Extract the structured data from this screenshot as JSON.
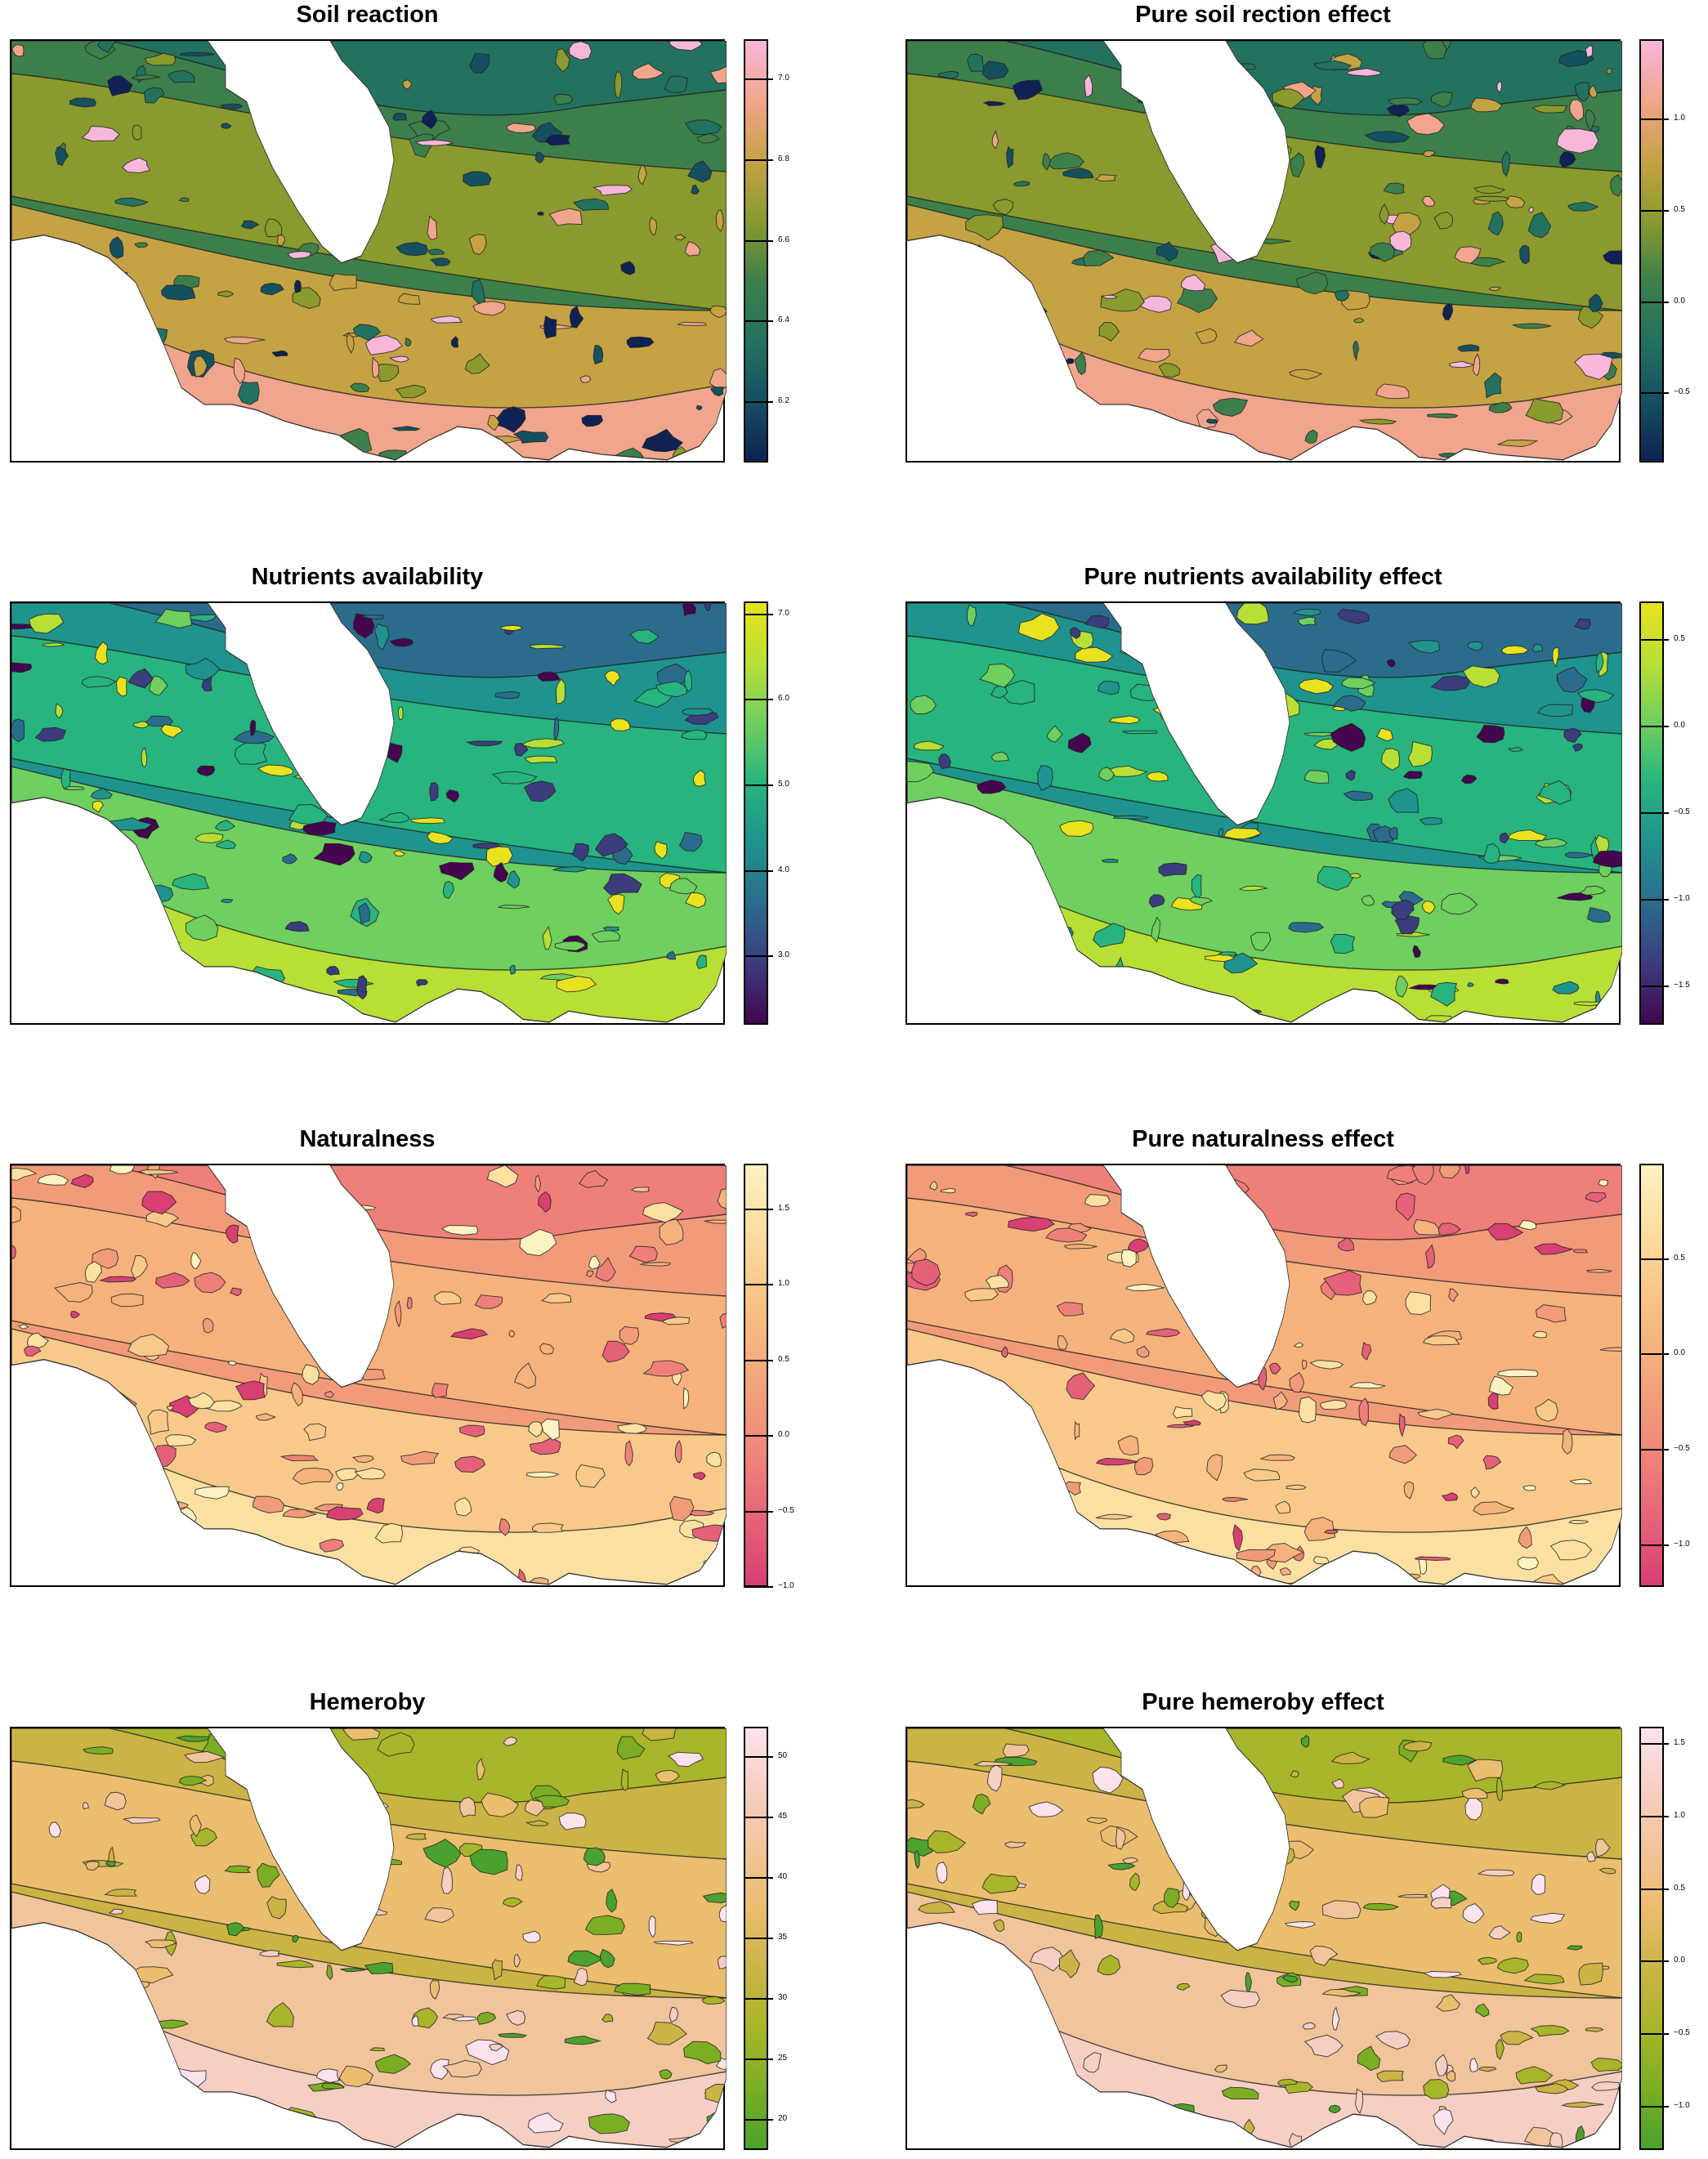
{
  "figure": {
    "panels": [
      {
        "title": "Soil reaction",
        "palette": "batlow",
        "ticks": [
          "7.0",
          "6.8",
          "6.6",
          "6.4",
          "6.2"
        ],
        "tick_values": [
          7.0,
          6.8,
          6.6,
          6.4,
          6.2
        ],
        "range": [
          6.05,
          7.1
        ],
        "colors": [
          "#0f2253",
          "#155061",
          "#237260",
          "#3d7f4b",
          "#8a9a2e",
          "#c5a244",
          "#f0a58c",
          "#f7b7da"
        ]
      },
      {
        "title": "Pure soil rection effect",
        "palette": "batlow",
        "ticks": [
          "1.0",
          "0.5",
          "0.0",
          "−0.5"
        ],
        "tick_values": [
          1.0,
          0.5,
          0.0,
          -0.5
        ],
        "range": [
          -0.88,
          1.44
        ],
        "colors": [
          "#0f2253",
          "#155061",
          "#237260",
          "#3d7f4b",
          "#8a9a2e",
          "#c5a244",
          "#f0a58c",
          "#f7b7da"
        ]
      },
      {
        "title": "Nutrients availability",
        "palette": "viridis",
        "ticks": [
          "7.0",
          "6.0",
          "5.0",
          "4.0",
          "3.0"
        ],
        "tick_values": [
          7.0,
          6.0,
          5.0,
          4.0,
          3.0
        ],
        "range": [
          2.2,
          7.15
        ],
        "colors": [
          "#43064f",
          "#3b3d7d",
          "#2b6c8d",
          "#1f938d",
          "#27b47f",
          "#6fcf5f",
          "#b8df35",
          "#e9e21f"
        ]
      },
      {
        "title": "Pure nutrients availability effect",
        "palette": "viridis",
        "ticks": [
          "0.5",
          "0.0",
          "−0.5",
          "−1.0",
          "−1.5"
        ],
        "tick_values": [
          0.5,
          0.0,
          -0.5,
          -1.0,
          -1.5
        ],
        "range": [
          -1.72,
          0.72
        ],
        "colors": [
          "#43064f",
          "#3b3d7d",
          "#2b6c8d",
          "#1f938d",
          "#27b47f",
          "#6fcf5f",
          "#b8df35",
          "#e9e21f"
        ]
      },
      {
        "title": "Naturalness",
        "palette": "heat",
        "ticks": [
          "1.5",
          "1.0",
          "0.5",
          "0.0",
          "−0.5",
          "−1.0"
        ],
        "tick_values": [
          1.5,
          1.0,
          0.5,
          0.0,
          -0.5,
          -1.0
        ],
        "range": [
          -1.0,
          1.8
        ],
        "colors": [
          "#d83f72",
          "#e56079",
          "#ee8079",
          "#f29b7a",
          "#f5b27c",
          "#f8c98a",
          "#fbe0a2",
          "#fdf2c2"
        ]
      },
      {
        "title": "Pure naturalness effect",
        "palette": "heat",
        "ticks": [
          "0.5",
          "0.0",
          "−0.5",
          "−1.0"
        ],
        "tick_values": [
          0.5,
          0.0,
          -0.5,
          -1.0
        ],
        "range": [
          -1.22,
          1.0
        ],
        "colors": [
          "#d83f72",
          "#e56079",
          "#ee8079",
          "#f29b7a",
          "#f5b27c",
          "#f8c98a",
          "#fbe0a2",
          "#fdf2c2"
        ]
      },
      {
        "title": "Hemeroby",
        "palette": "terrain",
        "ticks": [
          "50",
          "45",
          "40",
          "35",
          "30",
          "25",
          "20"
        ],
        "tick_values": [
          50,
          45,
          40,
          35,
          30,
          25,
          20
        ],
        "range": [
          17.5,
          52.5
        ],
        "colors": [
          "#4ba22e",
          "#7bae23",
          "#a9b52a",
          "#cbb445",
          "#ebbd6e",
          "#f2c49b",
          "#f6cec3",
          "#fbe3ec"
        ]
      },
      {
        "title": "Pure hemeroby effect",
        "palette": "terrain",
        "ticks": [
          "1.5",
          "1.0",
          "0.5",
          "0.0",
          "−0.5",
          "−1.0"
        ],
        "tick_values": [
          1.5,
          1.0,
          0.5,
          0.0,
          -0.5,
          -1.0
        ],
        "range": [
          -1.3,
          1.62
        ],
        "colors": [
          "#4ba22e",
          "#7bae23",
          "#a9b52a",
          "#cbb445",
          "#ebbd6e",
          "#f2c49b",
          "#f6cec3",
          "#fbe3ec"
        ]
      }
    ]
  }
}
